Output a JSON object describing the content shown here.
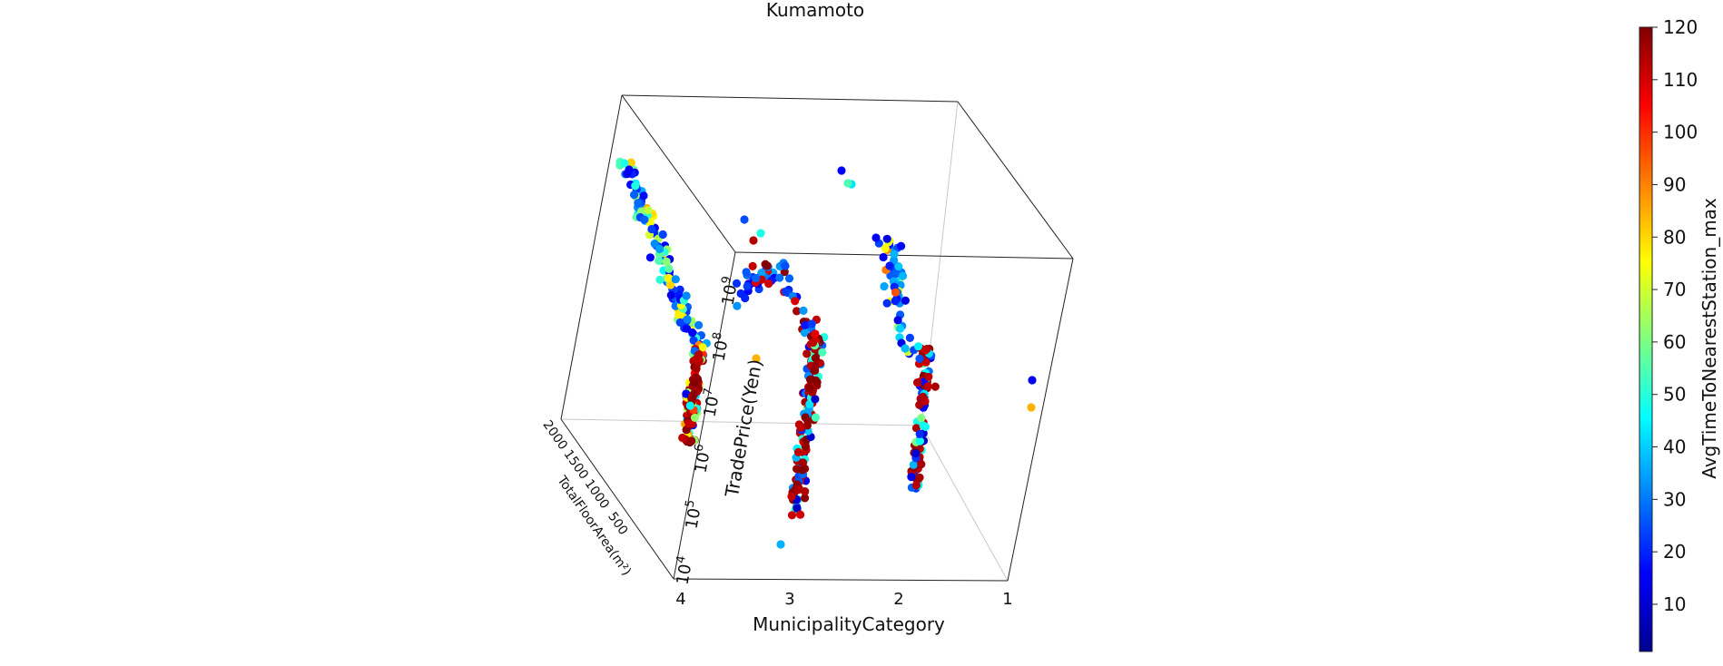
{
  "chart_data": {
    "type": "scatter",
    "projection": "3d",
    "title": "Kumamoto",
    "xlabel": "MunicipalityCategory",
    "ylabel": "TotalFloorArea(m²)",
    "zlabel": "TradePrice(Yen)",
    "colorbar_label": "AvgTimeToNearestStation_max",
    "x_ticks": [
      "4",
      "3",
      "2",
      "1"
    ],
    "y_ticks": [
      "2000",
      "1500",
      "1000",
      "500"
    ],
    "z_ticks": [
      "10^4",
      "10^5",
      "10^6",
      "10^7",
      "10^8",
      "10^9"
    ],
    "colorbar_ticks": [
      "10",
      "20",
      "30",
      "40",
      "50",
      "60",
      "70",
      "80",
      "90",
      "100",
      "110",
      "120"
    ],
    "colorbar_range": [
      1,
      120
    ],
    "z_scale": "log",
    "grid": false,
    "colormap": "jet",
    "clusters": [
      {
        "municipality_category": 4,
        "points": 260,
        "trade_price_range": [
          1000000,
          300000000
        ],
        "floor_area_range": [
          20,
          2000
        ]
      },
      {
        "municipality_category": 3,
        "points": 180,
        "trade_price_range": [
          100000,
          150000000
        ],
        "floor_area_range": [
          20,
          900
        ]
      },
      {
        "municipality_category": 2,
        "points": 120,
        "trade_price_range": [
          1000000,
          300000000
        ],
        "floor_area_range": [
          20,
          700
        ]
      },
      {
        "municipality_category": 1,
        "points": 2,
        "trade_price_range": [
          5000000,
          20000000
        ],
        "floor_area_range": [
          50,
          200
        ]
      }
    ]
  }
}
